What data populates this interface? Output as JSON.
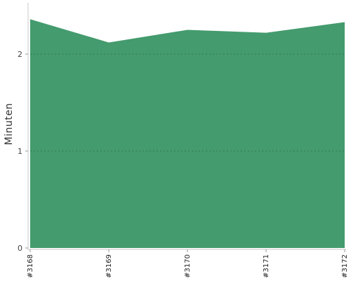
{
  "chart_data": {
    "type": "area",
    "categories": [
      "#3168",
      "#3169",
      "#3170",
      "#3171",
      "#3172"
    ],
    "values": [
      2.36,
      2.12,
      2.25,
      2.22,
      2.33
    ],
    "ylabel": "Minuten",
    "xlabel": "",
    "ylim": [
      0,
      2.5
    ],
    "yticks": [
      0,
      1,
      2
    ],
    "grid": "horizontal dotted",
    "fill_color": "#449b6e",
    "grid_color": "#2f7a50",
    "axis_color": "#c8c8c8"
  }
}
